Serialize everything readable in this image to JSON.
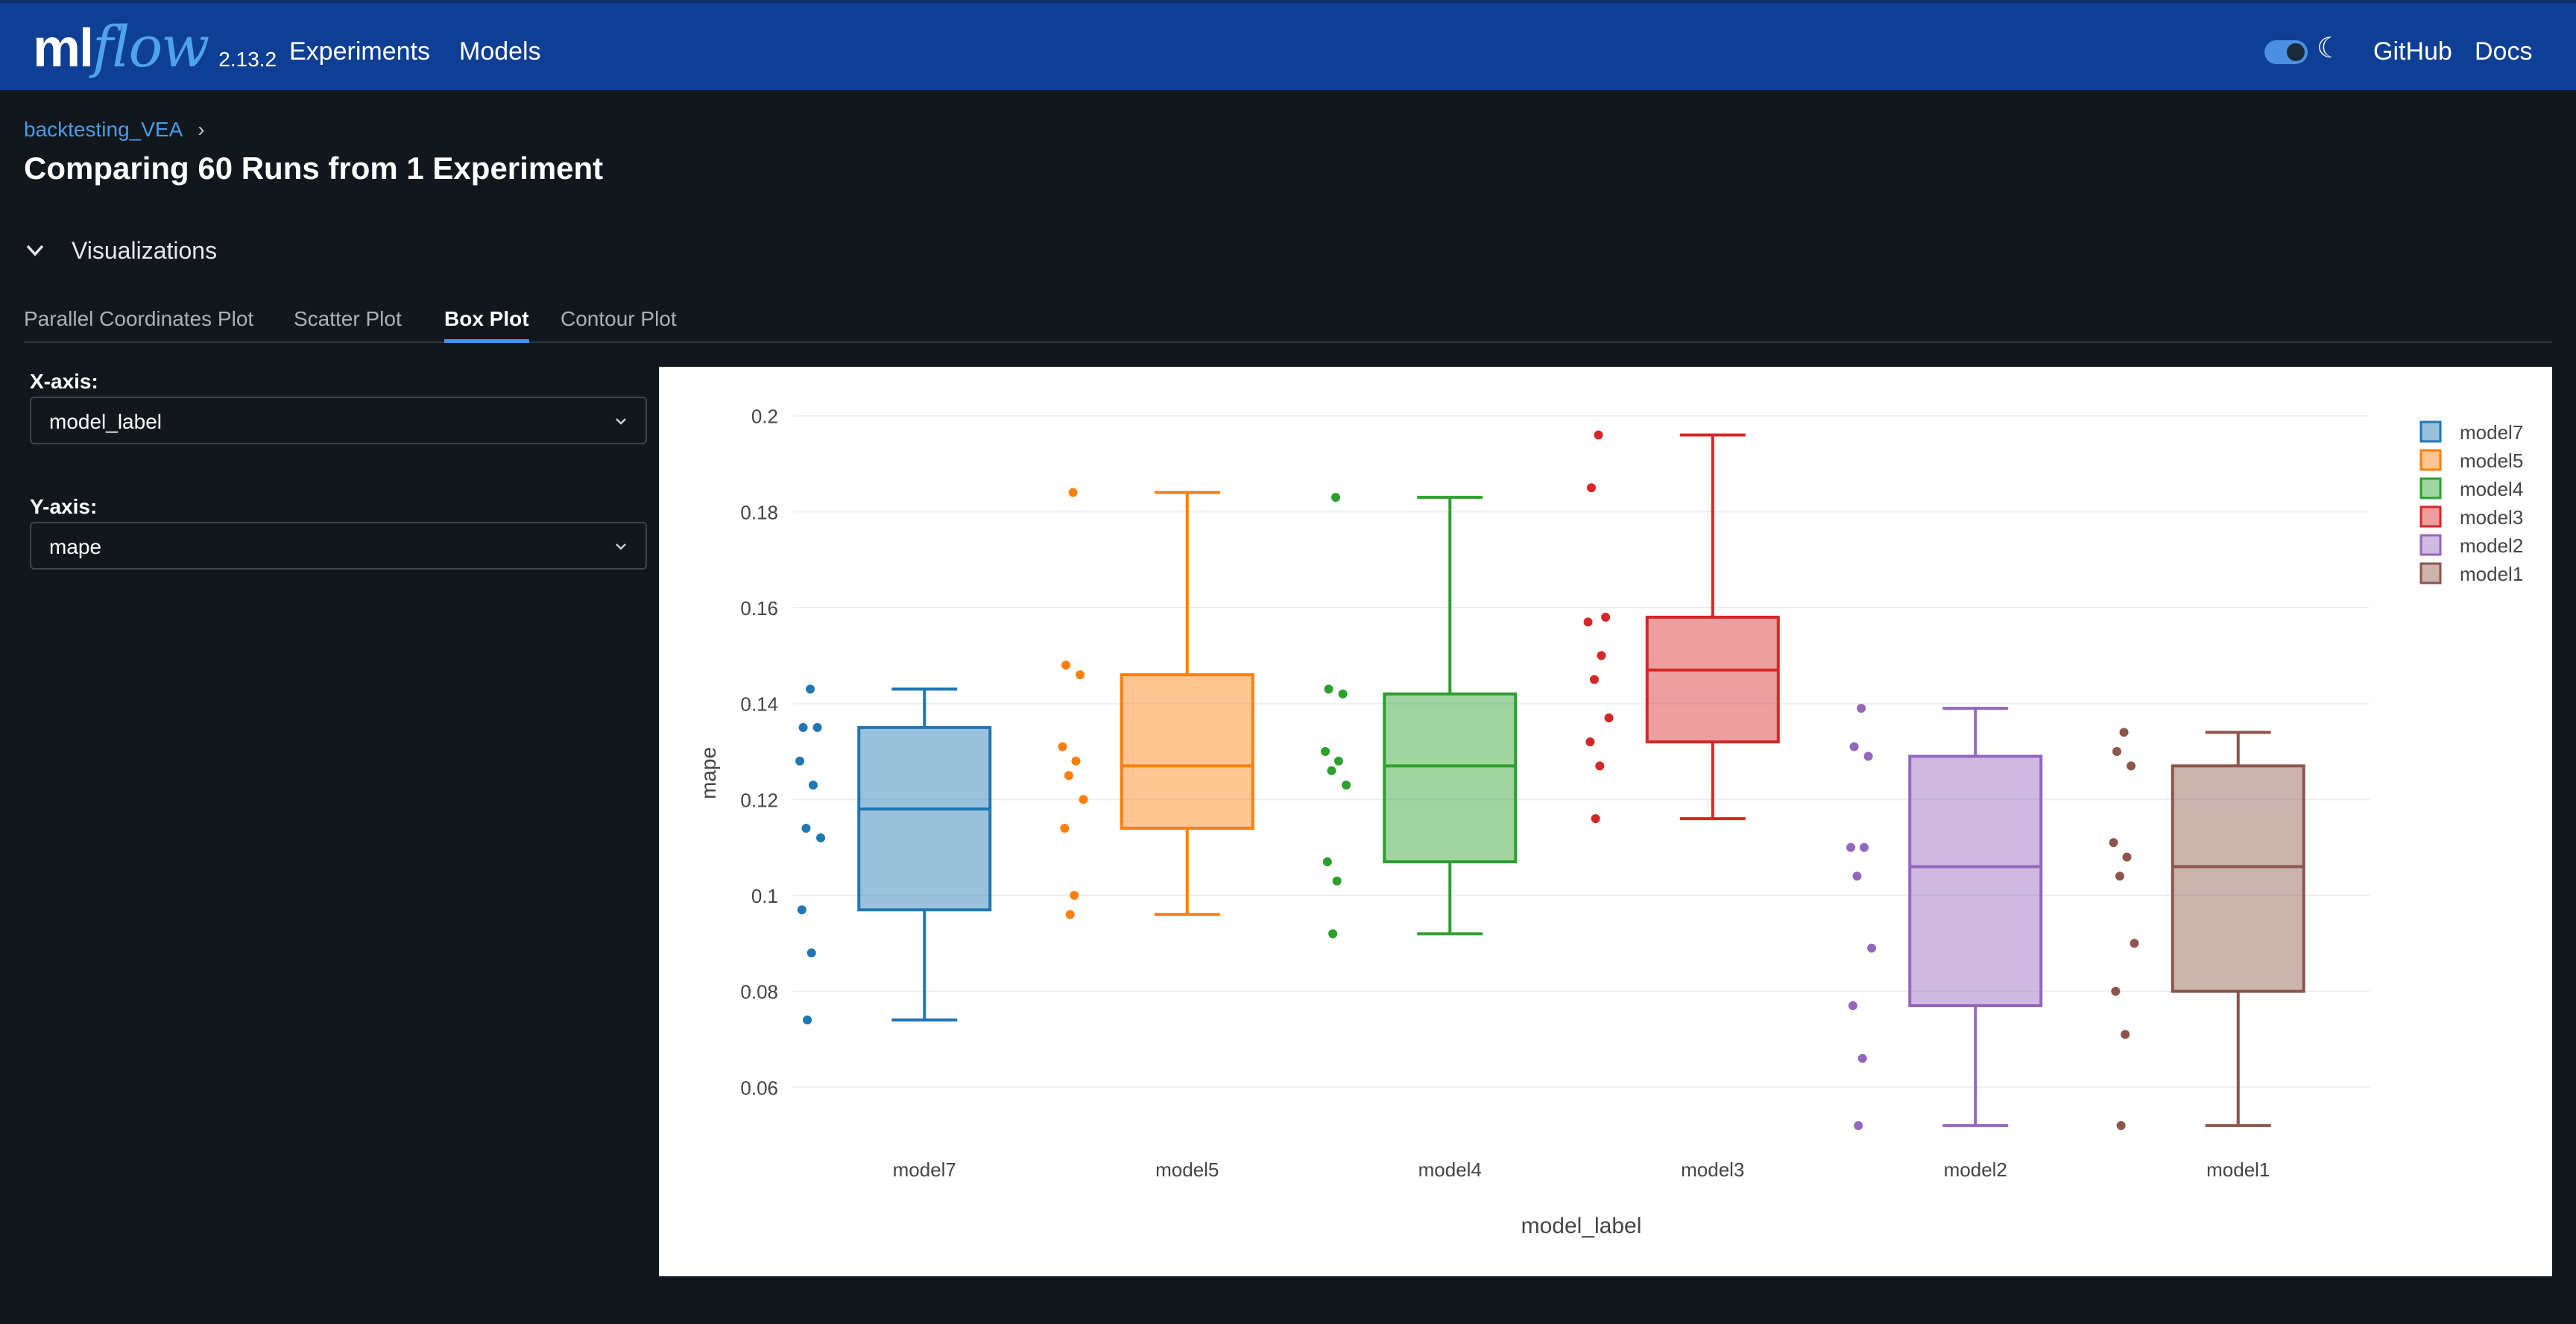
{
  "header": {
    "logo_ml": "ml",
    "logo_flow": "flow",
    "version": "2.13.2",
    "nav": [
      "Experiments",
      "Models"
    ],
    "right_links": [
      "GitHub",
      "Docs"
    ],
    "theme_icon": "moon-icon"
  },
  "breadcrumb": {
    "experiment": "backtesting_VEA",
    "separator": "›"
  },
  "page_title": "Comparing 60 Runs from 1 Experiment",
  "section": {
    "label": "Visualizations",
    "icon": "chevron-down-icon"
  },
  "tabs": [
    {
      "label": "Parallel Coordinates Plot",
      "active": false
    },
    {
      "label": "Scatter Plot",
      "active": false
    },
    {
      "label": "Box Plot",
      "active": true
    },
    {
      "label": "Contour Plot",
      "active": false
    }
  ],
  "controls": {
    "x_axis_label": "X-axis:",
    "x_axis_value": "model_label",
    "y_axis_label": "Y-axis:",
    "y_axis_value": "mape"
  },
  "chart_data": {
    "type": "box",
    "xlabel": "model_label",
    "ylabel": "mape",
    "ylim": [
      0.047,
      0.204
    ],
    "yticks": [
      0.06,
      0.08,
      0.1,
      0.12,
      0.14,
      0.16,
      0.18,
      0.2
    ],
    "ytick_labels": [
      "0.06",
      "0.08",
      "0.1",
      "0.12",
      "0.14",
      "0.16",
      "0.18",
      "0.2"
    ],
    "grid": true,
    "legend_position": "top-right",
    "categories": [
      "model7",
      "model5",
      "model4",
      "model3",
      "model2",
      "model1"
    ],
    "series": [
      {
        "name": "model7",
        "color": "#1f77b4",
        "min": 0.074,
        "q1": 0.097,
        "median": 0.118,
        "q3": 0.135,
        "max": 0.143,
        "points": [
          0.143,
          0.135,
          0.135,
          0.128,
          0.123,
          0.114,
          0.112,
          0.097,
          0.088,
          0.074
        ]
      },
      {
        "name": "model5",
        "color": "#ff7f0e",
        "min": 0.096,
        "q1": 0.114,
        "median": 0.127,
        "q3": 0.146,
        "max": 0.184,
        "points": [
          0.184,
          0.148,
          0.146,
          0.131,
          0.128,
          0.125,
          0.12,
          0.114,
          0.1,
          0.096
        ]
      },
      {
        "name": "model4",
        "color": "#2ca02c",
        "min": 0.092,
        "q1": 0.107,
        "median": 0.127,
        "q3": 0.142,
        "max": 0.183,
        "points": [
          0.183,
          0.143,
          0.142,
          0.13,
          0.128,
          0.126,
          0.123,
          0.107,
          0.103,
          0.092
        ]
      },
      {
        "name": "model3",
        "color": "#d62728",
        "min": 0.116,
        "q1": 0.132,
        "median": 0.147,
        "q3": 0.158,
        "max": 0.196,
        "points": [
          0.196,
          0.185,
          0.158,
          0.157,
          0.15,
          0.145,
          0.137,
          0.132,
          0.127,
          0.116
        ]
      },
      {
        "name": "model2",
        "color": "#9467bd",
        "min": 0.052,
        "q1": 0.077,
        "median": 0.106,
        "q3": 0.129,
        "max": 0.139,
        "points": [
          0.139,
          0.131,
          0.129,
          0.11,
          0.11,
          0.104,
          0.089,
          0.077,
          0.066,
          0.052
        ]
      },
      {
        "name": "model1",
        "color": "#8c564b",
        "min": 0.052,
        "q1": 0.08,
        "median": 0.106,
        "q3": 0.127,
        "max": 0.134,
        "points": [
          0.134,
          0.13,
          0.127,
          0.111,
          0.108,
          0.104,
          0.09,
          0.08,
          0.071,
          0.052
        ]
      }
    ]
  }
}
